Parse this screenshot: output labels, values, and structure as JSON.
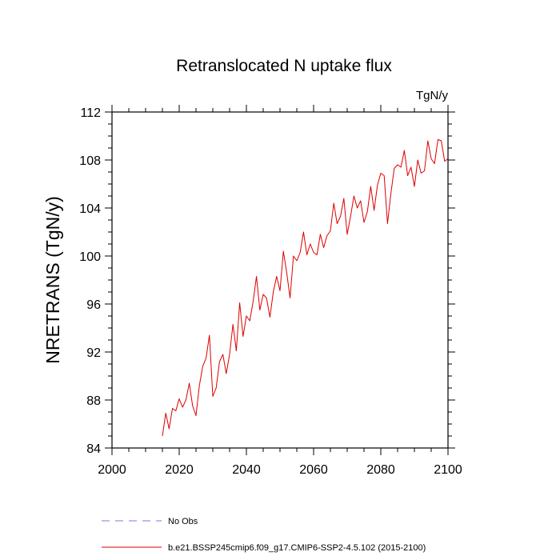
{
  "chart_data": {
    "type": "line",
    "title": "Retranslocated N uptake flux",
    "units": "TgN/y",
    "ylabel": "NRETRANS  (TgN/y)",
    "xlabel": "",
    "xlim": [
      2000,
      2100
    ],
    "ylim": [
      84,
      112
    ],
    "xticks": [
      "2000",
      "2020",
      "2040",
      "2060",
      "2080",
      "2100"
    ],
    "yticks": [
      "84",
      "88",
      "92",
      "96",
      "100",
      "104",
      "108",
      "112"
    ],
    "grid": false,
    "legend": [
      {
        "label": "No Obs",
        "color": "#7777ee",
        "style": "dashed"
      },
      {
        "label": "b.e21.BSSP245cmip6.f09_g17.CMIP6-SSP2-4.5.102 (2015-2100)",
        "color": "#dd0000",
        "style": "solid"
      }
    ],
    "series": [
      {
        "color": "#dd0000",
        "x": [
          2015,
          2016,
          2017,
          2018,
          2019,
          2020,
          2021,
          2022,
          2023,
          2024,
          2025,
          2026,
          2027,
          2028,
          2029,
          2030,
          2031,
          2032,
          2033,
          2034,
          2035,
          2036,
          2037,
          2038,
          2039,
          2040,
          2041,
          2042,
          2043,
          2044,
          2045,
          2046,
          2047,
          2048,
          2049,
          2050,
          2051,
          2052,
          2053,
          2054,
          2055,
          2056,
          2057,
          2058,
          2059,
          2060,
          2061,
          2062,
          2063,
          2064,
          2065,
          2066,
          2067,
          2068,
          2069,
          2070,
          2071,
          2072,
          2073,
          2074,
          2075,
          2076,
          2077,
          2078,
          2079,
          2080,
          2081,
          2082,
          2083,
          2084,
          2085,
          2086,
          2087,
          2088,
          2089,
          2090,
          2091,
          2092,
          2093,
          2094,
          2095,
          2096,
          2097,
          2098,
          2099,
          2100
        ],
        "values": [
          85.0,
          86.9,
          85.6,
          87.3,
          87.1,
          88.1,
          87.4,
          88.0,
          89.4,
          87.5,
          86.7,
          89.2,
          90.8,
          91.5,
          93.4,
          88.3,
          89.0,
          91.2,
          91.8,
          90.2,
          91.8,
          94.3,
          92.1,
          96.1,
          93.3,
          95.0,
          94.6,
          96.2,
          98.3,
          95.5,
          96.8,
          96.5,
          94.9,
          97.0,
          98.3,
          97.1,
          100.4,
          98.6,
          96.5,
          100.0,
          99.6,
          100.3,
          102.0,
          100.1,
          101.0,
          100.3,
          100.1,
          101.8,
          100.7,
          101.7,
          102.1,
          104.4,
          102.7,
          103.3,
          104.8,
          101.8,
          103.3,
          105.0,
          104.0,
          104.6,
          102.8,
          103.7,
          105.8,
          103.8,
          105.9,
          106.9,
          106.7,
          102.7,
          105.2,
          107.3,
          107.6,
          107.4,
          108.8,
          106.7,
          107.4,
          105.8,
          108.0,
          106.9,
          107.1,
          109.6,
          108.1,
          107.7,
          109.7,
          109.6,
          107.9,
          108.1
        ]
      }
    ]
  }
}
